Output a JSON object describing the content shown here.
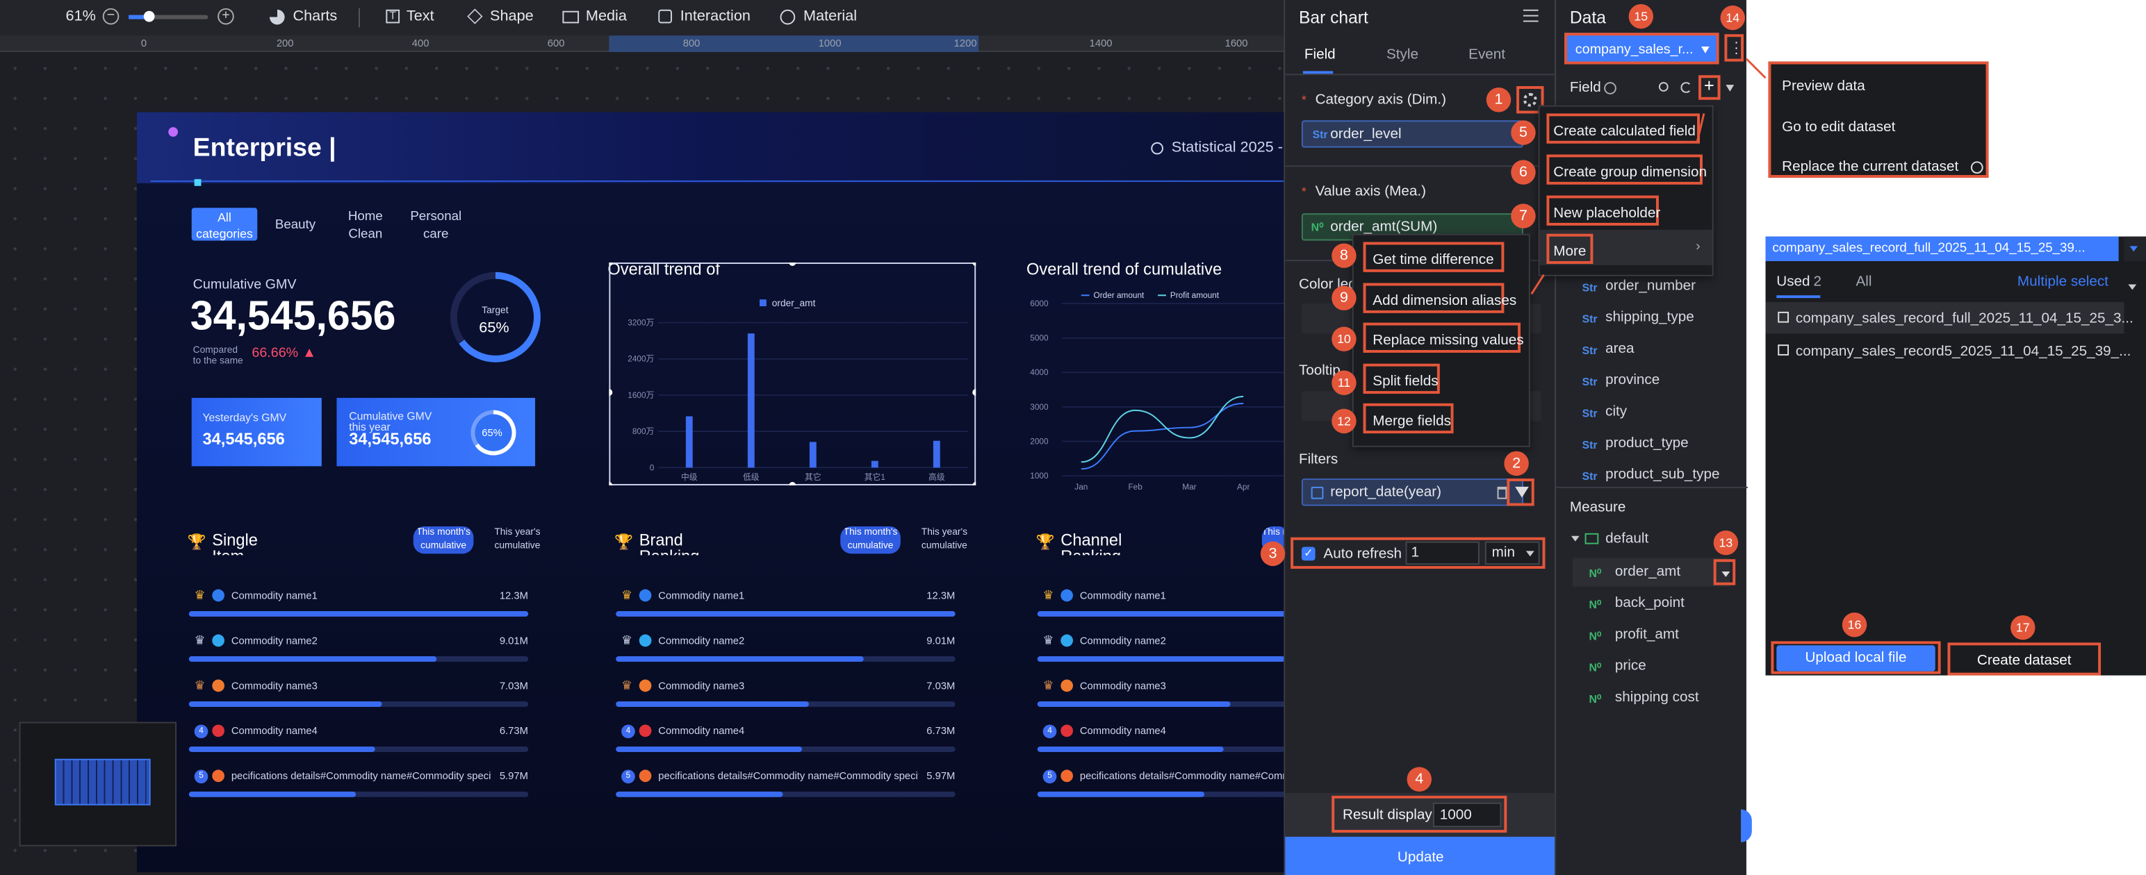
{
  "toolbar": {
    "zoom": "61%",
    "items": [
      "Charts",
      "Text",
      "Shape",
      "Media",
      "Interaction",
      "Material"
    ]
  },
  "ruler": {
    "ticks": [
      "0",
      "200",
      "400",
      "600",
      "800",
      "1000",
      "1200",
      "1400",
      "1600"
    ]
  },
  "dashboard": {
    "title": "Enterprise |",
    "stat_time": "Statistical 2025 -",
    "tabs": [
      "All\ncategories",
      "Beauty",
      "Home\nClean",
      "Personal\ncare"
    ],
    "cum_label": "Cumulative GMV",
    "cum_value": "34,545,656",
    "compared": "Compared\nto the same",
    "compared_pct": "66.66%",
    "target_label": "Target",
    "target_value": "65%",
    "target_fraction": 0.65,
    "yesterday_label": "Yesterday's GMV",
    "yesterday_value": "34,545,656",
    "cumyear_label": "Cumulative GMV\nthis year",
    "cumyear_value": "34,545,656",
    "cumyear_pct": "65%",
    "trend_title": "Overall trend of",
    "cum_trend_title": "Overall trend of cumulative",
    "rankings": [
      {
        "title": "Single\nItem",
        "tab1": "This month's\ncumulative",
        "tab2": "This year's\ncumulative"
      },
      {
        "title": "Brand\nRanking",
        "tab1": "This month's\ncumulative",
        "tab2": "This year's\ncumulative"
      },
      {
        "title": "Channel\nRanking",
        "tab1": "This m"
      }
    ],
    "rows": [
      {
        "rank": "",
        "name": "Commodity name1",
        "value": "12.3M",
        "fill": 1.0
      },
      {
        "rank": "",
        "name": "Commodity name2",
        "value": "9.01M",
        "fill": 0.73
      },
      {
        "rank": "",
        "name": "Commodity name3",
        "value": "7.03M",
        "fill": 0.57
      },
      {
        "rank": "4",
        "name": "Commodity name4",
        "value": "6.73M",
        "fill": 0.55
      },
      {
        "rank": "5",
        "name": "pecifications details#Commodity name#Commodity specif",
        "value": "5.97M",
        "fill": 0.49
      }
    ]
  },
  "chart_data": [
    {
      "type": "bar",
      "legend": [
        "order_amt"
      ],
      "categories": [
        "中级",
        "低级",
        "其它",
        "其它1",
        "高级"
      ],
      "values": [
        1300,
        3400,
        650,
        170,
        680
      ],
      "ylim": [
        0,
        3600
      ],
      "yticks": [
        "0",
        "800万",
        "1600万",
        "2400万",
        "3200万"
      ]
    },
    {
      "type": "line",
      "legend": [
        "Order amount",
        "Profit amount"
      ],
      "x": [
        "Jan",
        "Feb",
        "Mar",
        "Apr"
      ],
      "series": [
        {
          "name": "Order amount",
          "values": [
            1200,
            2300,
            2400,
            3100
          ]
        },
        {
          "name": "Profit amount",
          "values": [
            1400,
            2900,
            2100,
            3300
          ]
        }
      ],
      "ylim": [
        1000,
        6000
      ],
      "yticks": [
        "1000",
        "2000",
        "3000",
        "4000",
        "5000",
        "6000"
      ]
    }
  ],
  "panel": {
    "title": "Bar chart",
    "tabs": [
      "Field",
      "Style",
      "Event"
    ],
    "category_label": "Category axis (Dim.)",
    "category_value": "order_level",
    "value_label": "Value axis (Mea.)",
    "value_value": "order_amt(SUM)",
    "color_label": "Color leg",
    "tooltip_label": "Tooltip",
    "filters_label": "Filters",
    "filter_value": "report_date(year)",
    "auto_refresh": "Auto refresh",
    "refresh_value": "1",
    "refresh_unit": "min",
    "result_display": "Result display",
    "result_value": "1000",
    "update": "Update"
  },
  "gear_menu": [
    "Get time difference",
    "Add dimension aliases",
    "Replace missing values",
    "Split fields",
    "Merge fields"
  ],
  "plus_menu": [
    "Create calculated field",
    "Create group dimension",
    "New placeholder",
    "More"
  ],
  "data_panel": {
    "title": "Data",
    "dataset": "company_sales_r...",
    "field_label": "Field",
    "dims": [
      "order_number",
      "shipping_type",
      "area",
      "province",
      "city",
      "product_type",
      "product_sub_type"
    ],
    "measure_label": "Measure",
    "measure_folder": "default",
    "measures": [
      "order_amt",
      "back_point",
      "profit_amt",
      "price",
      "shipping cost"
    ]
  },
  "dots_menu": [
    "Preview data",
    "Go to edit dataset",
    "Replace the current dataset"
  ],
  "dataset_popup": {
    "header": "company_sales_record_full_2025_11_04_15_25_39...",
    "tab_used": "Used",
    "used_count": "2",
    "tab_all": "All",
    "multiple": "Multiple select",
    "items": [
      "company_sales_record_full_2025_11_04_15_25_3...",
      "company_sales_record5_2025_11_04_15_25_39_..."
    ],
    "upload": "Upload local file",
    "create": "Create dataset"
  },
  "badges": [
    "1",
    "2",
    "3",
    "4",
    "5",
    "6",
    "7",
    "8",
    "9",
    "10",
    "11",
    "12",
    "13",
    "14",
    "15",
    "16",
    "17"
  ],
  "colors": {
    "accent": "#3d7cff",
    "callout": "#e4563a",
    "panel": "#232429",
    "canvas": "#0b0e24"
  }
}
